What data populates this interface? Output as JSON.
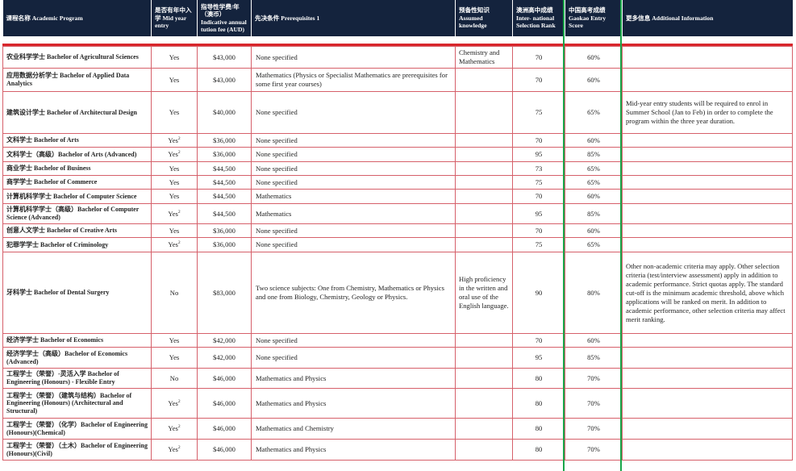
{
  "headers": {
    "program": "课程名称 Academic Program",
    "mid_year": "是否有年中入学 Mid year entry",
    "fee": "指导性学费/年（澳币）Indicative annual tution fee (AUD)",
    "prereq": "先决条件 Prerequisites 1",
    "assumed": "预备性知识 Assumed knowledge",
    "rank": "澳洲高中成绩 Inter- national Selection Rank",
    "gaokao": "中国高考成绩 Gaokao Entry Score",
    "info": "更多信息 Additional Information"
  },
  "rows": [
    {
      "program": "农业科学学士 Bachelor of Agricultural Sciences",
      "mid": "Yes",
      "sup": "",
      "fee": "$43,000",
      "prereq": "None specified",
      "assumed": "Chemistry and Mathematics",
      "rank": "70",
      "gaokao": "60%",
      "info": ""
    },
    {
      "program": "应用数据分析学士 Bachelor of Applied Data Analytics",
      "mid": "Yes",
      "sup": "",
      "fee": "$43,000",
      "prereq": "Mathematics (Physics or Specialist Mathematics are prerequisites for some first year courses)",
      "assumed": "",
      "rank": "70",
      "gaokao": "60%",
      "info": ""
    },
    {
      "program": "建筑设计学士 Bachelor of Architectural Design",
      "mid": "Yes",
      "sup": "",
      "fee": "$40,000",
      "prereq": "None specified",
      "assumed": "",
      "rank": "75",
      "gaokao": "65%",
      "info": "Mid-year entry students will be required to enrol in Summer School (Jan to Feb) in order to complete the program within the three year duration."
    },
    {
      "program": "文科学士 Bachelor of Arts",
      "mid": "Yes",
      "sup": "2",
      "fee": "$36,000",
      "prereq": "None specified",
      "assumed": "",
      "rank": "70",
      "gaokao": "60%",
      "info": ""
    },
    {
      "program": "文科学士（高级）Bachelor of Arts (Advanced)",
      "mid": "Yes",
      "sup": "2",
      "fee": "$36,000",
      "prereq": "None specified",
      "assumed": "",
      "rank": "95",
      "gaokao": "85%",
      "info": ""
    },
    {
      "program": "商业学士 Bachelor of Business",
      "mid": "Yes",
      "sup": "",
      "fee": "$44,500",
      "prereq": "None specified",
      "assumed": "",
      "rank": "73",
      "gaokao": "65%",
      "info": ""
    },
    {
      "program": "商学学士 Bachelor of Commerce",
      "mid": "Yes",
      "sup": "",
      "fee": "$44,500",
      "prereq": "None specified",
      "assumed": "",
      "rank": "75",
      "gaokao": "65%",
      "info": ""
    },
    {
      "program": "计算机科学学士 Bachelor of Computer Science",
      "mid": "Yes",
      "sup": "",
      "fee": "$44,500",
      "prereq": "Mathematics",
      "assumed": "",
      "rank": "70",
      "gaokao": "60%",
      "info": ""
    },
    {
      "program": "计算机科学学士（高级）Bachelor of Computer Science (Advanced)",
      "mid": "Yes",
      "sup": "2",
      "fee": "$44,500",
      "prereq": "Mathematics",
      "assumed": "",
      "rank": "95",
      "gaokao": "85%",
      "info": ""
    },
    {
      "program": "创意人文学士 Bachelor of Creative Arts",
      "mid": "Yes",
      "sup": "",
      "fee": "$36,000",
      "prereq": "None specified",
      "assumed": "",
      "rank": "70",
      "gaokao": "60%",
      "info": ""
    },
    {
      "program": "犯罪学学士 Bachelor of Criminology",
      "mid": "Yes",
      "sup": "2",
      "fee": "$36,000",
      "prereq": "None specified",
      "assumed": "",
      "rank": "75",
      "gaokao": "65%",
      "info": ""
    },
    {
      "program": "牙科学士 Bachelor of Dental Surgery",
      "mid": "No",
      "sup": "",
      "fee": "$83,000",
      "prereq": "Two science subjects: One from Chemistry, Mathematics or Physics and one from Biology, Chemistry, Geology or Physics.",
      "assumed": "High proficiency in the written and oral use of the English language.",
      "rank": "90",
      "gaokao": "80%",
      "info": "Other non-academic criteria may apply. Other selection criteria (test/interview assessment) apply in addition to academic performance. Strict quotas apply. The standard cut-off is the minimum academic threshold, above which applications will be ranked on merit. In addition to academic performance, other selection criteria may affect merit ranking."
    },
    {
      "program": "经济学学士 Bachelor of Economics",
      "mid": "Yes",
      "sup": "",
      "fee": "$42,000",
      "prereq": "None specified",
      "assumed": "",
      "rank": "70",
      "gaokao": "60%",
      "info": ""
    },
    {
      "program": "经济学学士（高级）Bachelor of Economics (Advanced)",
      "mid": "Yes",
      "sup": "",
      "fee": "$42,000",
      "prereq": "None specified",
      "assumed": "",
      "rank": "95",
      "gaokao": "85%",
      "info": ""
    },
    {
      "program": "工程学士（荣誉）-灵活入学 Bachelor of Engineering (Honours) - Flexible Entry",
      "mid": "No",
      "sup": "",
      "fee": "$46,000",
      "prereq": "Mathematics and Physics",
      "assumed": "",
      "rank": "80",
      "gaokao": "70%",
      "info": ""
    },
    {
      "program": "工程学士（荣誉）（建筑与结构）Bachelor of Engineering (Honours) (Architectural and Structural)",
      "mid": "Yes",
      "sup": "2",
      "fee": "$46,000",
      "prereq": "Mathematics and Physics",
      "assumed": "",
      "rank": "80",
      "gaokao": "70%",
      "info": ""
    },
    {
      "program": "工程学士（荣誉）（化学）Bachelor of Engineering (Honours)(Chemical)",
      "mid": "Yes",
      "sup": "2",
      "fee": "$46,000",
      "prereq": "Mathematics and Chemistry",
      "assumed": "",
      "rank": "80",
      "gaokao": "70%",
      "info": ""
    },
    {
      "program": "工程学士（荣誉）（土木）Bachelor of Engineering (Honours)(Civil)",
      "mid": "Yes",
      "sup": "2",
      "fee": "$46,000",
      "prereq": "Mathematics and Physics",
      "assumed": "",
      "rank": "80",
      "gaokao": "70%",
      "info": ""
    }
  ],
  "colors": {
    "header_bg": "#14233d",
    "accent_red": "#d8262c",
    "grid_red": "#d6606a",
    "highlight_green": "#1aa64a"
  }
}
